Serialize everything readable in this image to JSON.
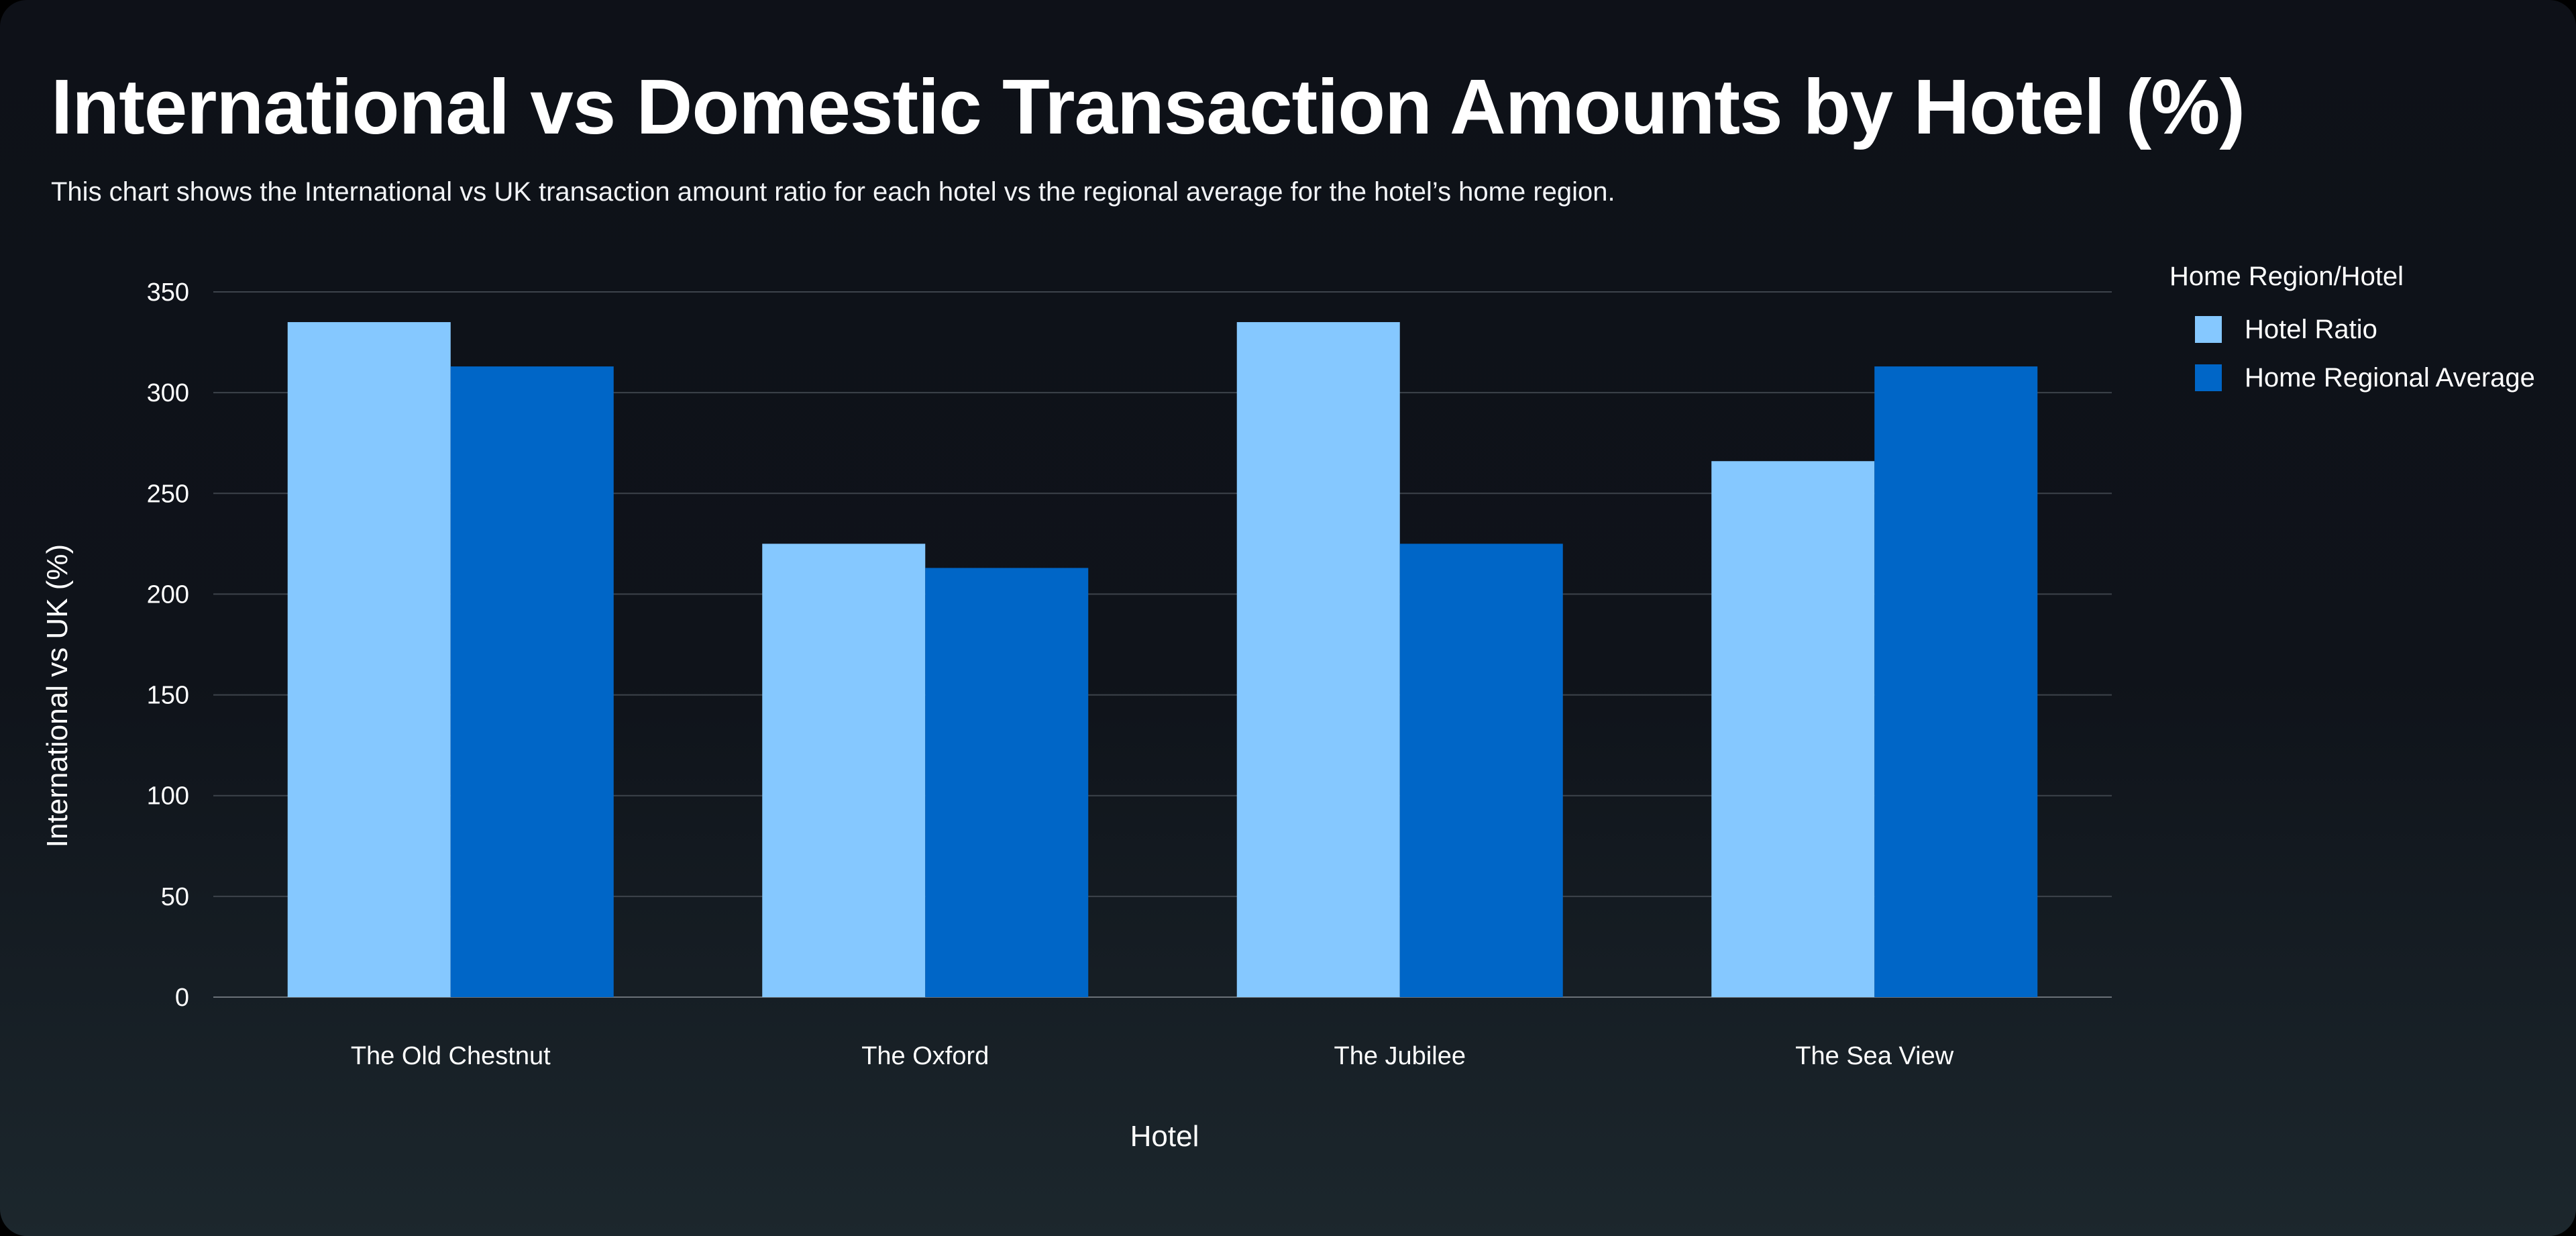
{
  "header": {
    "title": "International vs Domestic Transaction Amounts by Hotel (%)",
    "subtitle": "This chart shows the International vs UK transaction amount ratio for each hotel vs the regional average for the hotel’s home region."
  },
  "legend": {
    "title": "Home Region/Hotel",
    "items": [
      {
        "label": "Hotel Ratio",
        "color": "#85c8ff"
      },
      {
        "label": "Home Regional Average",
        "color": "#0066c7"
      }
    ]
  },
  "chart_data": {
    "type": "bar",
    "xlabel": "Hotel",
    "ylabel": "International vs UK (%)",
    "categories": [
      "The Old Chestnut",
      "The Oxford",
      "The Jubilee",
      "The Sea View"
    ],
    "series": [
      {
        "name": "Hotel Ratio",
        "color": "#85c8ff",
        "values": [
          335,
          225,
          335,
          266
        ]
      },
      {
        "name": "Home Regional Average",
        "color": "#0066c7",
        "values": [
          313,
          213,
          225,
          313
        ]
      }
    ],
    "ylim": [
      0,
      350
    ],
    "yticks": [
      "0",
      "50",
      "100",
      "150",
      "200",
      "250",
      "300",
      "350"
    ],
    "grid": true,
    "legend_position": "right"
  }
}
